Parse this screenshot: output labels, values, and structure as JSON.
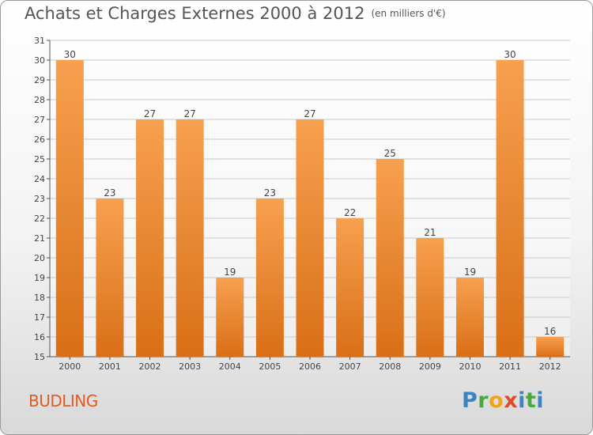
{
  "header": {
    "title": "Achats et Charges Externes 2000 à 2012",
    "unit": "(en milliers d'€)"
  },
  "footer": {
    "commune": "BUDLING",
    "logo": "Proxiti"
  },
  "colors": {
    "bar_light": "#f7a04f",
    "bar_dark": "#d96f17",
    "grid": "#c8c8c8",
    "axis": "#555555",
    "logo_p": "#3a84c4",
    "logo_r": "#49a83d",
    "logo_o": "#f0a21a",
    "logo_x": "#e24a2b",
    "logo_i": "#3a84c4",
    "logo_t": "#49a83d"
  },
  "chart_data": {
    "type": "bar",
    "categories": [
      "2000",
      "2001",
      "2002",
      "2003",
      "2004",
      "2005",
      "2006",
      "2007",
      "2008",
      "2009",
      "2010",
      "2011",
      "2012"
    ],
    "values": [
      30,
      23,
      27,
      27,
      19,
      23,
      27,
      22,
      25,
      21,
      19,
      30,
      16
    ],
    "ylim": [
      15,
      31
    ],
    "yticks": [
      15,
      16,
      17,
      18,
      19,
      20,
      21,
      22,
      23,
      24,
      25,
      26,
      27,
      28,
      29,
      30,
      31
    ],
    "grid": true,
    "title": "Achats et Charges Externes 2000 à 2012",
    "xlabel": "",
    "ylabel": ""
  }
}
